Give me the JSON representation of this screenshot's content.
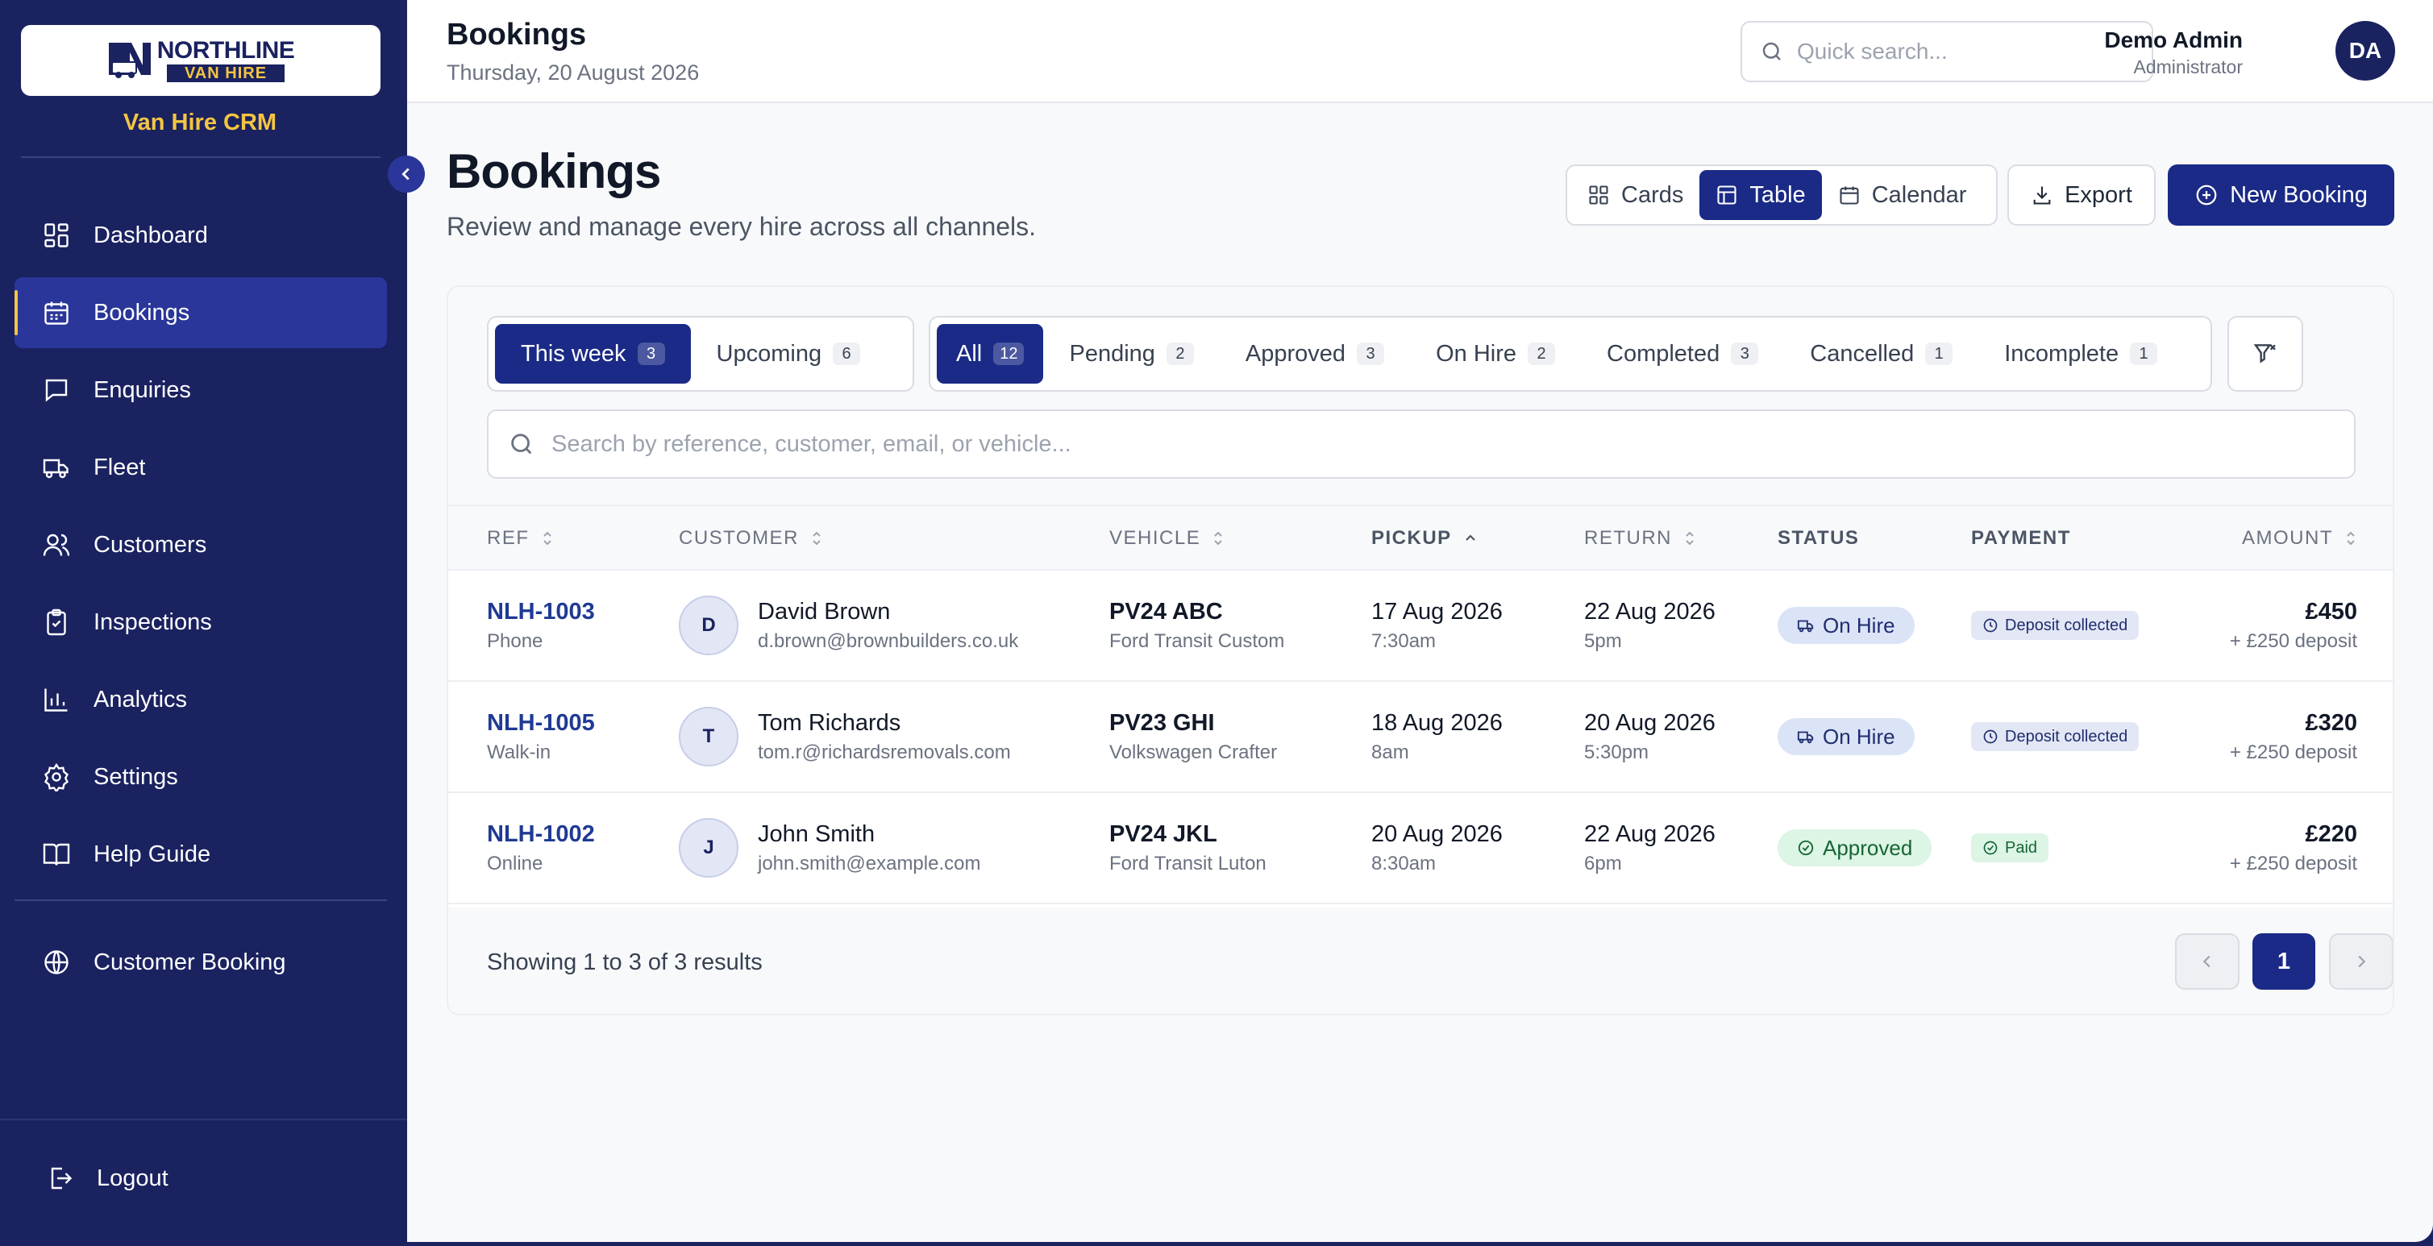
{
  "brand": {
    "logo_top": "NORTHLINE",
    "logo_bottom": "VAN HIRE",
    "subtitle": "Van Hire CRM"
  },
  "sidebar": {
    "items": [
      {
        "label": "Dashboard",
        "icon": "dashboard-icon"
      },
      {
        "label": "Bookings",
        "icon": "calendar-icon",
        "active": true
      },
      {
        "label": "Enquiries",
        "icon": "message-icon"
      },
      {
        "label": "Fleet",
        "icon": "truck-icon"
      },
      {
        "label": "Customers",
        "icon": "users-icon"
      },
      {
        "label": "Inspections",
        "icon": "clipboard-check-icon"
      },
      {
        "label": "Analytics",
        "icon": "bar-chart-icon"
      },
      {
        "label": "Settings",
        "icon": "gear-icon"
      },
      {
        "label": "Help Guide",
        "icon": "book-icon"
      }
    ],
    "customer_booking": "Customer Booking",
    "logout": "Logout"
  },
  "topbar": {
    "title": "Bookings",
    "date": "Thursday, 20 August 2026",
    "search_placeholder": "Quick search...",
    "user_name": "Demo Admin",
    "user_role": "Administrator",
    "user_initials": "DA"
  },
  "page": {
    "title": "Bookings",
    "subtitle": "Review and manage every hire across all channels.",
    "views": [
      "Cards",
      "Table",
      "Calendar"
    ],
    "active_view": "Table",
    "export": "Export",
    "new_booking": "New Booking"
  },
  "filters": {
    "period": [
      {
        "label": "This week",
        "count": "3",
        "active": true
      },
      {
        "label": "Upcoming",
        "count": "6"
      }
    ],
    "status": [
      {
        "label": "All",
        "count": "12",
        "active": true
      },
      {
        "label": "Pending",
        "count": "2"
      },
      {
        "label": "Approved",
        "count": "3"
      },
      {
        "label": "On Hire",
        "count": "2"
      },
      {
        "label": "Completed",
        "count": "3"
      },
      {
        "label": "Cancelled",
        "count": "1"
      },
      {
        "label": "Incomplete",
        "count": "1"
      }
    ],
    "search_placeholder": "Search by reference, customer, email, or vehicle..."
  },
  "table": {
    "columns": [
      "Ref",
      "Customer",
      "Vehicle",
      "Pickup",
      "Return",
      "Status",
      "Payment",
      "Amount"
    ],
    "rows": [
      {
        "ref": "NLH-1003",
        "channel": "Phone",
        "initial": "D",
        "customer": "David Brown",
        "email": "d.brown@brownbuilders.co.uk",
        "reg": "PV24 ABC",
        "model": "Ford Transit Custom",
        "pickup_date": "17 Aug 2026",
        "pickup_time": "7:30am",
        "return_date": "22 Aug 2026",
        "return_time": "5pm",
        "status": "On Hire",
        "payment": "Deposit collected",
        "amount": "£450",
        "deposit": "+ £250 deposit"
      },
      {
        "ref": "NLH-1005",
        "channel": "Walk-in",
        "initial": "T",
        "customer": "Tom Richards",
        "email": "tom.r@richardsremovals.com",
        "reg": "PV23 GHI",
        "model": "Volkswagen Crafter",
        "pickup_date": "18 Aug 2026",
        "pickup_time": "8am",
        "return_date": "20 Aug 2026",
        "return_time": "5:30pm",
        "status": "On Hire",
        "payment": "Deposit collected",
        "amount": "£320",
        "deposit": "+ £250 deposit"
      },
      {
        "ref": "NLH-1002",
        "channel": "Online",
        "initial": "J",
        "customer": "John Smith",
        "email": "john.smith@example.com",
        "reg": "PV24 JKL",
        "model": "Ford Transit Luton",
        "pickup_date": "20 Aug 2026",
        "pickup_time": "8:30am",
        "return_date": "22 Aug 2026",
        "return_time": "6pm",
        "status": "Approved",
        "payment": "Paid",
        "amount": "£220",
        "deposit": "+ £250 deposit"
      }
    ]
  },
  "pagination": {
    "summary": "Showing 1 to 3 of 3 results",
    "current": "1"
  },
  "colors": {
    "sidebar_bg": "#1a2260",
    "accent": "#1a2a86",
    "brand_yellow": "#f4c542",
    "on_hire_badge": "#dbe3f7",
    "approved_badge": "#dcf5e4"
  }
}
